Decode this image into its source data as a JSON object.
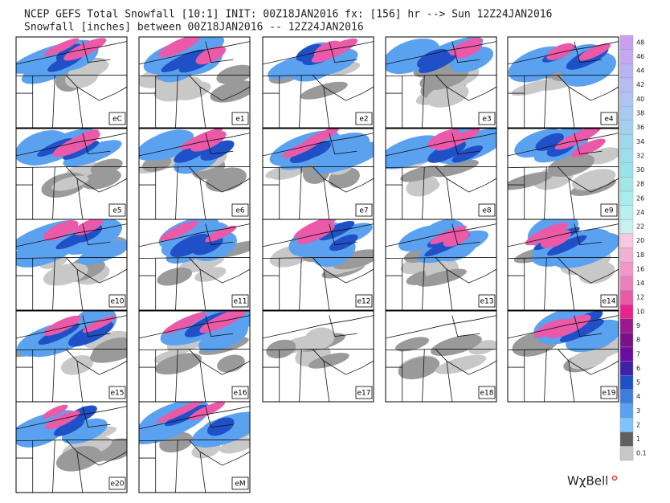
{
  "header": {
    "title": "NCEP GEFS Total Snowfall [10:1] INIT: 00Z18JAN2016 fx: [156] hr --> Sun 12Z24JAN2016",
    "subtitle": "Snowfall [inches] between 00Z18JAN2016 -- 12Z24JAN2016"
  },
  "panels": [
    "eC",
    "e1",
    "e2",
    "e3",
    "e4",
    "e5",
    "e6",
    "e7",
    "e8",
    "e9",
    "e10",
    "e11",
    "e12",
    "e13",
    "e14",
    "e15",
    "e16",
    "e17",
    "e18",
    "e19",
    "e20",
    "eM"
  ],
  "colorbar": {
    "labels": [
      "48",
      "46",
      "44",
      "42",
      "40",
      "38",
      "36",
      "34",
      "32",
      "30",
      "28",
      "26",
      "24",
      "22",
      "20",
      "18",
      "16",
      "14",
      "12",
      "10",
      "9",
      "8",
      "7",
      "6",
      "5",
      "4",
      "3",
      "2",
      "1",
      "0.1"
    ],
    "colors": [
      "#c9a0f0",
      "#c4a8f2",
      "#b9b2f4",
      "#b4bcf4",
      "#b0c4f4",
      "#a8caf2",
      "#a4d0f0",
      "#a0d8ee",
      "#9cdeec",
      "#98e2ea",
      "#a0e8e8",
      "#a8eceb",
      "#b8f0ee",
      "#c8f0f0",
      "#f8c8e0",
      "#f4b0d4",
      "#f098c8",
      "#ec80bc",
      "#ea5aa8",
      "#e8248c",
      "#9a1890",
      "#7a108a",
      "#6a0ca0",
      "#4020a8",
      "#2050c8",
      "#3c7ee0",
      "#5aa2f0",
      "#7fc4ff",
      "#606060",
      "#c8c8c8"
    ]
  },
  "logo": "WχBell"
}
